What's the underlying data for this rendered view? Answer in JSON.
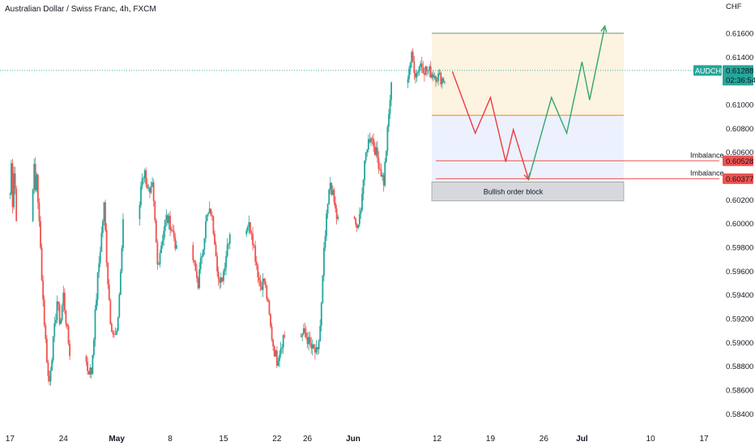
{
  "header": {
    "title": "Australian Dollar / Swiss Franc, 4h, FXCM",
    "currency": "CHF"
  },
  "chart_data": {
    "type": "candlestick",
    "symbol": "AUDCHF",
    "ylim": [
      0.583,
      0.6188
    ],
    "y_ticks": [
      "0.61800",
      "0.61600",
      "0.61400",
      "0.61200",
      "0.61000",
      "0.60800",
      "0.60600",
      "0.60400",
      "0.60200",
      "0.60000",
      "0.59800",
      "0.59600",
      "0.59400",
      "0.59200",
      "0.59000",
      "0.58800",
      "0.58600",
      "0.58400"
    ],
    "x_labels": [
      "17",
      "24",
      "May",
      "8",
      "15",
      "22",
      "26",
      "Jun",
      "12",
      "19",
      "26",
      "Jul",
      "10",
      "17"
    ],
    "price_label": {
      "symbol": "AUDCHF",
      "value": "0.61288",
      "countdown": "02:36:54"
    },
    "bull_color": "#26a69a",
    "bear_color": "#ef5350",
    "swings": [
      [
        0.6025,
        0.605,
        0.6018,
        0.6045,
        0.603,
        0.6002,
        0.6033,
        0.6046,
        0.6027,
        0.6042,
        0.602
      ],
      [
        0.602,
        0.599,
        0.596,
        0.593,
        0.5905,
        0.5885,
        0.5862,
        0.588
      ],
      [
        0.588,
        0.5905,
        0.5935,
        0.5915,
        0.594
      ],
      [
        0.594,
        0.5905,
        0.5878,
        0.5875
      ],
      [
        0.5875,
        0.5955,
        0.6015
      ],
      [
        0.6015,
        0.596,
        0.592,
        0.5905,
        0.5905
      ],
      [
        0.5905,
        0.595,
        0.6,
        0.604,
        0.6042
      ],
      [
        0.6042,
        0.6032,
        0.6022,
        0.603,
        0.6,
        0.5965
      ],
      [
        0.5965,
        0.5985,
        0.6005,
        0.6
      ],
      [
        0.6,
        0.5988,
        0.5965,
        0.595
      ],
      [
        0.595,
        0.5978,
        0.6005,
        0.601
      ],
      [
        0.601,
        0.5985,
        0.5945,
        0.596
      ],
      [
        0.596,
        0.5985,
        0.6,
        0.5995
      ],
      [
        0.5995,
        0.597,
        0.5948,
        0.5952
      ],
      [
        0.5952,
        0.5935,
        0.5912,
        0.5895,
        0.5885
      ],
      [
        0.5885,
        0.5905,
        0.5908
      ],
      [
        0.5908,
        0.5895,
        0.589
      ],
      [
        0.589,
        0.592,
        0.5975,
        0.601,
        0.6035
      ],
      [
        0.6035,
        0.6005,
        0.5995
      ],
      [
        0.5995,
        0.603,
        0.6065,
        0.6075
      ],
      [
        0.6075,
        0.6055,
        0.6035
      ],
      [
        0.6035,
        0.607,
        0.6105,
        0.613,
        0.614
      ],
      [
        0.614,
        0.6125,
        0.6135,
        0.613
      ],
      [
        0.613,
        0.612
      ]
    ],
    "zones": {
      "target_top": 0.616,
      "entry": 0.6091,
      "box_bottom": 0.6019,
      "imbalances": [
        {
          "label": "Imbalance",
          "value": 0.60528,
          "text": "0.60528"
        },
        {
          "label": "Imbalance",
          "value": 0.60377,
          "text": "0.60377"
        }
      ],
      "order_block": {
        "label": "Bullish order block",
        "top": 0.6035,
        "bottom": 0.6019
      }
    },
    "projection": {
      "bearish_path": [
        [
          0.6128,
          "Jun 14"
        ],
        [
          0.6076,
          "Jun 17"
        ],
        [
          0.6106,
          "Jun 19"
        ],
        [
          0.6052,
          "Jun 21"
        ],
        [
          0.6079,
          "Jun 22"
        ],
        [
          0.6037,
          "Jun 24"
        ]
      ],
      "bullish_path": [
        [
          0.6037,
          "Jun 24"
        ],
        [
          0.6106,
          "Jun 27"
        ],
        [
          0.6076,
          "Jun 29"
        ],
        [
          0.6136,
          "Jul 1"
        ],
        [
          0.6104,
          "Jul 2"
        ],
        [
          0.6166,
          "Jul 4"
        ]
      ]
    }
  }
}
